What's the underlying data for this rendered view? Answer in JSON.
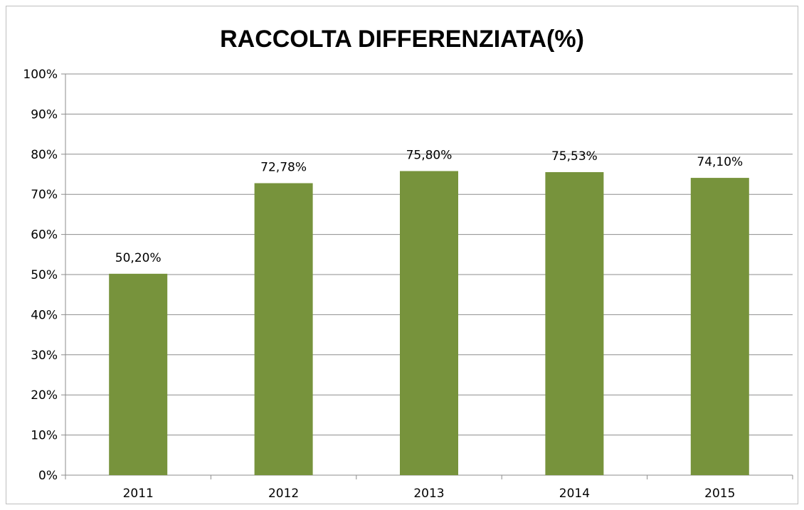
{
  "chart_data": {
    "type": "bar",
    "title": "RACCOLTA DIFFERENZIATA(%)",
    "xlabel": "",
    "ylabel": "",
    "categories": [
      "2011",
      "2012",
      "2013",
      "2014",
      "2015"
    ],
    "values": [
      50.2,
      72.78,
      75.8,
      75.53,
      74.1
    ],
    "data_labels": [
      "50,20%",
      "72,78%",
      "75,80%",
      "75,53%",
      "74,10%"
    ],
    "y_ticks": [
      0,
      10,
      20,
      30,
      40,
      50,
      60,
      70,
      80,
      90,
      100
    ],
    "y_tick_labels": [
      "0%",
      "10%",
      "20%",
      "30%",
      "40%",
      "50%",
      "60%",
      "70%",
      "80%",
      "90%",
      "100%"
    ],
    "ylim": [
      0,
      100
    ],
    "grid": true,
    "legend": "none",
    "colors": {
      "bar": "#77933c",
      "grid": "#8c8c8c",
      "axis": "#8c8c8c"
    }
  }
}
